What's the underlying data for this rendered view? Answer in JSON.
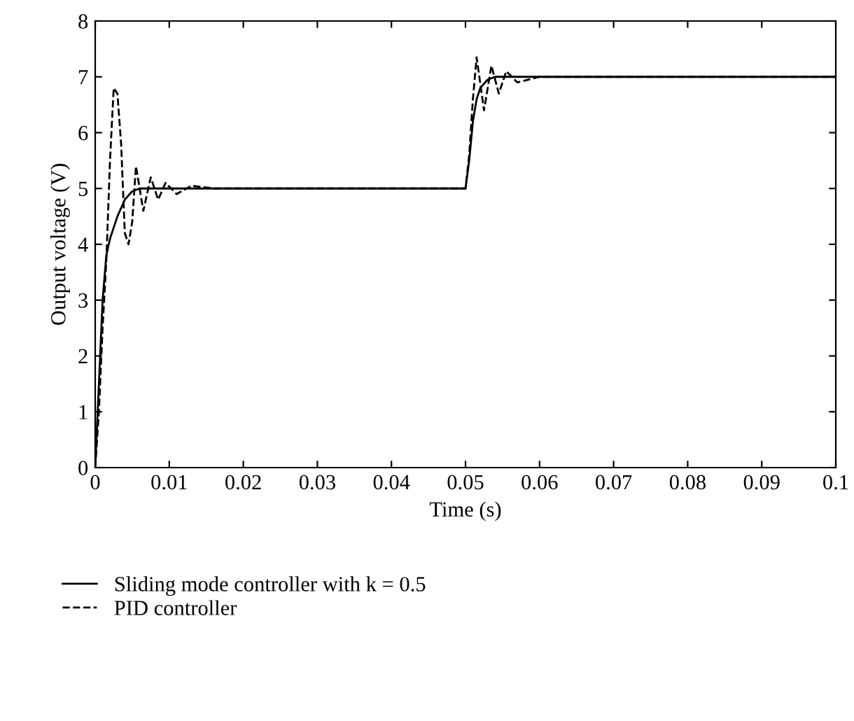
{
  "chart_data": {
    "type": "line",
    "xlabel": "Time (s)",
    "ylabel": "Output voltage (V)",
    "xlim": [
      0,
      0.1
    ],
    "xticks": [
      0,
      0.01,
      0.02,
      0.03,
      0.04,
      0.05,
      0.06,
      0.07,
      0.08,
      0.09,
      0.1
    ],
    "ylim": [
      0,
      8
    ],
    "yticks": [
      0,
      1,
      2,
      3,
      4,
      5,
      6,
      7,
      8
    ],
    "grid": false,
    "legend": "bottom",
    "marker": "none",
    "series": [
      {
        "name": "Sliding mode controller with k = 0.5",
        "color": "#000000",
        "line_style": "solid",
        "x": [
          0,
          0.0005,
          0.001,
          0.0015,
          0.002,
          0.003,
          0.004,
          0.005,
          0.006,
          0.007,
          0.01,
          0.05,
          0.0505,
          0.051,
          0.0515,
          0.052,
          0.053,
          0.054,
          0.055,
          0.06,
          0.1
        ],
        "values": [
          0,
          1.5,
          3,
          3.8,
          4.1,
          4.5,
          4.8,
          4.95,
          5,
          5,
          5,
          5,
          5.5,
          6.2,
          6.6,
          6.8,
          6.95,
          7,
          7,
          7,
          7
        ]
      },
      {
        "name": "PID controller",
        "color": "#000000",
        "line_style": "dashed",
        "x": [
          0,
          0.0005,
          0.001,
          0.0015,
          0.002,
          0.0025,
          0.003,
          0.0035,
          0.004,
          0.0045,
          0.005,
          0.0055,
          0.0065,
          0.0075,
          0.0085,
          0.0095,
          0.011,
          0.013,
          0.016,
          0.05,
          0.0505,
          0.051,
          0.0515,
          0.0525,
          0.0535,
          0.0545,
          0.0555,
          0.057,
          0.06,
          0.1
        ],
        "values": [
          0,
          1,
          2.5,
          3.7,
          5.5,
          6.8,
          6.7,
          5.8,
          4.2,
          4.0,
          4.4,
          5.4,
          4.6,
          5.2,
          4.8,
          5.1,
          4.9,
          5.05,
          5,
          5,
          5.6,
          6.6,
          7.35,
          6.4,
          7.2,
          6.7,
          7.1,
          6.9,
          7,
          7
        ]
      }
    ]
  }
}
